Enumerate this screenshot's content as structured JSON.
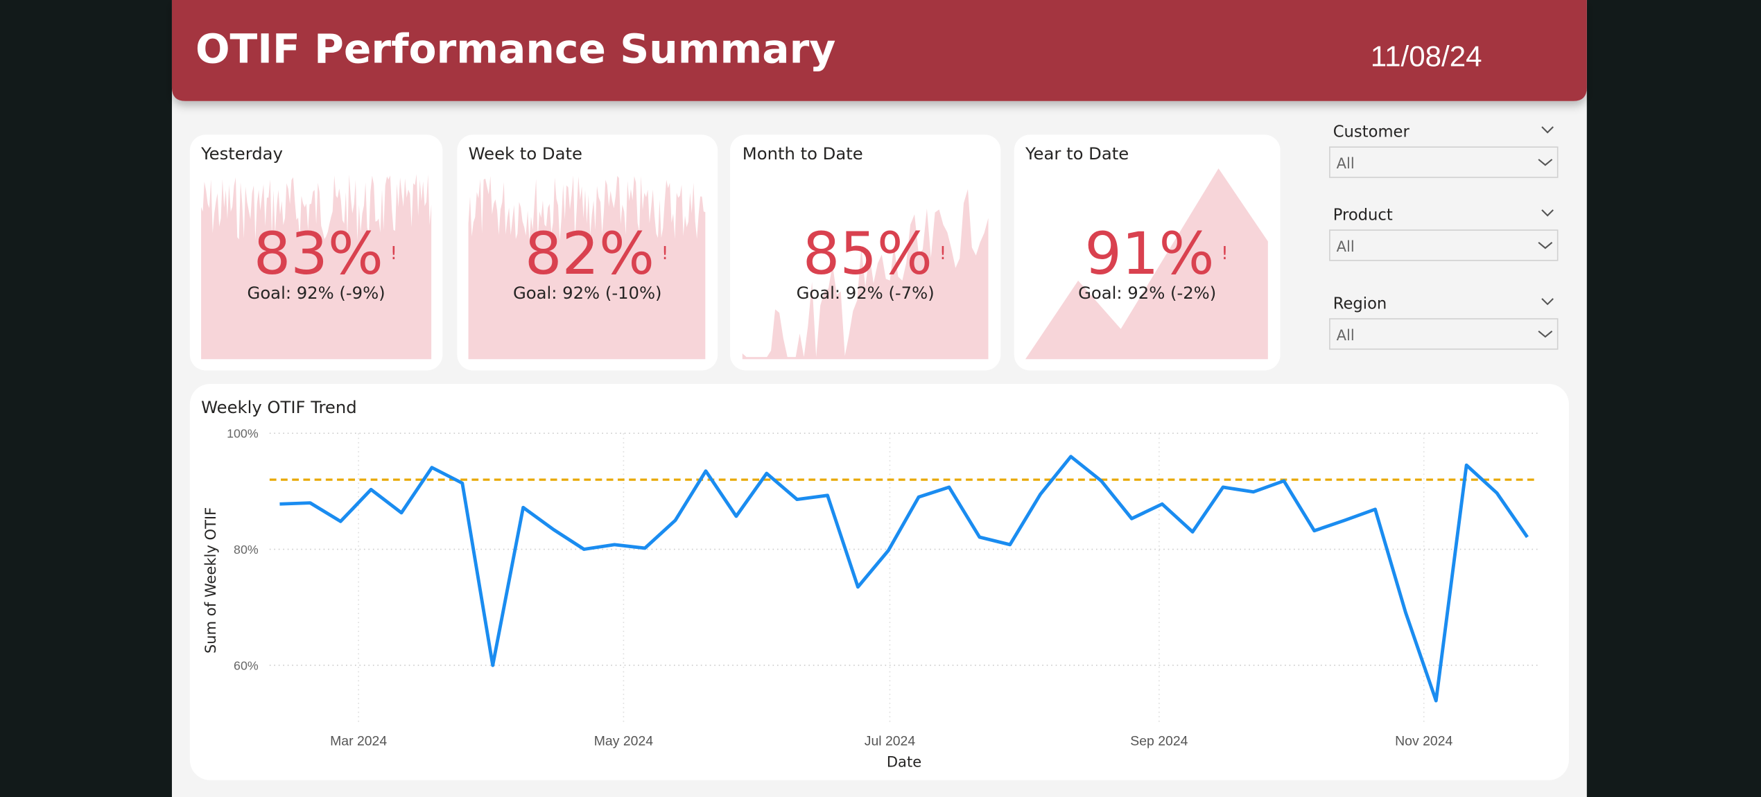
{
  "header": {
    "title": "OTIF Performance Summary",
    "date": "11/08/24"
  },
  "kpis": [
    {
      "title": "Yesterday",
      "value": "83%",
      "flag": "!",
      "goal": "Goal: 92% (-9%)"
    },
    {
      "title": "Week to Date",
      "value": "82%",
      "flag": "!",
      "goal": "Goal: 92% (-10%)"
    },
    {
      "title": "Month to Date",
      "value": "85%",
      "flag": "!",
      "goal": "Goal: 92% (-7%)"
    },
    {
      "title": "Year to Date",
      "value": "91%",
      "flag": "!",
      "goal": "Goal: 92% (-2%)"
    }
  ],
  "filters": [
    {
      "label": "Customer",
      "selection": "All"
    },
    {
      "label": "Product",
      "selection": "All"
    },
    {
      "label": "Region",
      "selection": "All"
    }
  ],
  "chart_data": {
    "type": "line",
    "title": "Weekly OTIF Trend",
    "xlabel": "Date",
    "ylabel": "Sum of Weekly OTIF",
    "xticks": [
      "Mar 2024",
      "May 2024",
      "Jul 2024",
      "Sep 2024",
      "Nov 2024"
    ],
    "ylim": [
      52,
      100
    ],
    "yticks": [
      {
        "value": 60,
        "label": "60%"
      },
      {
        "value": 80,
        "label": "80%"
      },
      {
        "value": 100,
        "label": "100%"
      }
    ],
    "grid": true,
    "color": "#1a8cf0",
    "goal": 92,
    "goal_color": "#e8a800",
    "values": [
      87.8,
      88.0,
      84.8,
      90.3,
      86.3,
      94.1,
      91.4,
      60,
      87.2,
      83.4,
      80,
      80.8,
      80.2,
      85,
      93.5,
      85.7,
      93.1,
      88.6,
      89.3,
      73.5,
      79.8,
      89,
      90.7,
      82.1,
      80.8,
      89.5,
      96,
      91.8,
      85.3,
      87.8,
      83,
      90.7,
      89.9,
      91.8,
      83.2,
      85,
      86.9,
      69.1,
      53.9,
      94.5,
      89.7,
      82.1
    ]
  }
}
